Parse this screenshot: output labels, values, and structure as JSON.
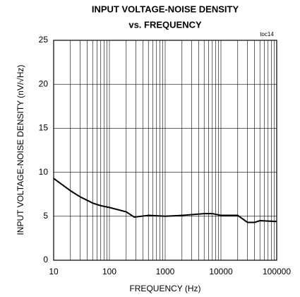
{
  "chart_data": {
    "type": "line",
    "title": [
      "INPUT VOLTAGE-NOISE DENSITY",
      "vs. FREQUENCY"
    ],
    "annotation": "toc14",
    "x_label": "FREQUENCY (Hz)",
    "y_label": "INPUT VOLTAGE-NOISE DENSITY (nV/√Hz)",
    "x": [
      10,
      20,
      30,
      50,
      70,
      100,
      200,
      280,
      500,
      1000,
      2000,
      5000,
      7000,
      10000,
      20000,
      30000,
      40000,
      50000,
      100000
    ],
    "values": [
      9.3,
      7.9,
      7.2,
      6.5,
      6.2,
      6.0,
      5.5,
      4.9,
      5.1,
      5.0,
      5.1,
      5.3,
      5.3,
      5.1,
      5.1,
      4.3,
      4.3,
      4.5,
      4.4
    ],
    "color": "#000000",
    "xscale": "log",
    "xlim": [
      10,
      100000
    ],
    "xticks": [
      10,
      100,
      1000,
      10000,
      100000
    ],
    "ylim": [
      0,
      25
    ],
    "yticks": [
      0,
      5,
      10,
      15,
      20,
      25
    ],
    "grid": true,
    "minor_grid": true
  }
}
